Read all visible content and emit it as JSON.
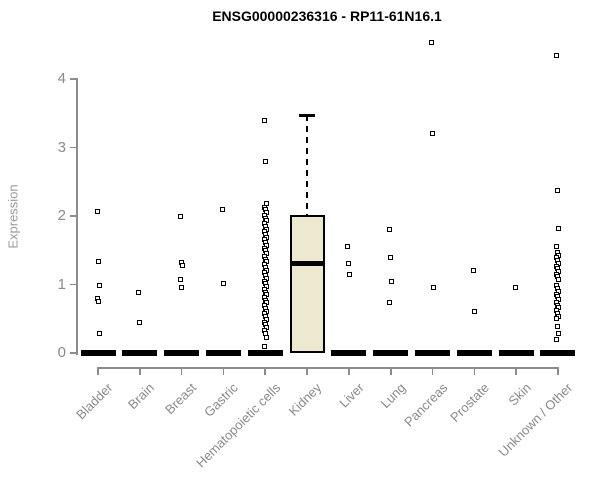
{
  "title": "ENSG00000236316 - RP11-61N16.1",
  "chart_data": {
    "type": "boxplot",
    "title": "ENSG00000236316 - RP11-61N16.1",
    "xlabel": "",
    "ylabel": "Expression",
    "ylim": [
      0,
      4
    ],
    "yticks": [
      0,
      1,
      2,
      3,
      4
    ],
    "grid": false,
    "legend": "none",
    "categories": [
      "Bladder",
      "Brain",
      "Breast",
      "Gastric",
      "Hematopoietic cells",
      "Kidney",
      "Liver",
      "Lung",
      "Pancreas",
      "Prostate",
      "Skin",
      "Unknown / Other"
    ],
    "series": [
      {
        "category": "Bladder",
        "median": 0,
        "zero_bar": true,
        "points": [
          2.06,
          1.34,
          0.99,
          0.8,
          0.75,
          0.28
        ]
      },
      {
        "category": "Brain",
        "median": 0,
        "zero_bar": true,
        "points": [
          0.88,
          0.44
        ]
      },
      {
        "category": "Breast",
        "median": 0,
        "zero_bar": true,
        "points": [
          2.0,
          1.32,
          1.28,
          1.07,
          0.95
        ]
      },
      {
        "category": "Gastric",
        "median": 0,
        "zero_bar": true,
        "points": [
          2.09,
          1.01
        ]
      },
      {
        "category": "Hematopoietic cells",
        "median": 0,
        "zero_bar": true,
        "points": [
          3.4,
          2.8,
          2.18,
          2.13,
          2.09,
          2.05,
          2.01,
          1.97,
          1.93,
          1.89,
          1.85,
          1.81,
          1.77,
          1.73,
          1.69,
          1.65,
          1.61,
          1.57,
          1.53,
          1.49,
          1.45,
          1.41,
          1.37,
          1.33,
          1.29,
          1.25,
          1.21,
          1.17,
          1.13,
          1.09,
          1.05,
          1.01,
          0.97,
          0.93,
          0.89,
          0.85,
          0.81,
          0.77,
          0.73,
          0.69,
          0.65,
          0.61,
          0.57,
          0.53,
          0.49,
          0.45,
          0.41,
          0.37,
          0.33,
          0.29,
          0.22,
          0.1
        ]
      },
      {
        "category": "Kidney",
        "zero_bar": false,
        "box": {
          "q1": 0.0,
          "median": 1.31,
          "q3": 2.01,
          "whisker_high": 3.47
        },
        "points": []
      },
      {
        "category": "Liver",
        "median": 0,
        "zero_bar": true,
        "points": [
          1.56,
          1.3,
          1.14
        ]
      },
      {
        "category": "Lung",
        "median": 0,
        "zero_bar": true,
        "points": [
          1.81,
          1.39,
          1.04,
          0.74
        ]
      },
      {
        "category": "Pancreas",
        "median": 0,
        "zero_bar": true,
        "points": [
          4.54,
          3.21,
          0.96
        ]
      },
      {
        "category": "Prostate",
        "median": 0,
        "zero_bar": true,
        "points": [
          1.2,
          0.61
        ]
      },
      {
        "category": "Skin",
        "median": 0,
        "zero_bar": true,
        "points": [
          0.95
        ]
      },
      {
        "category": "Unknown / Other",
        "median": 0,
        "zero_bar": true,
        "points": [
          4.34,
          2.37,
          1.82,
          1.55,
          1.47,
          1.43,
          1.39,
          1.35,
          1.31,
          1.27,
          1.23,
          1.19,
          1.15,
          1.11,
          1.07,
          0.98,
          0.94,
          0.9,
          0.86,
          0.82,
          0.78,
          0.74,
          0.7,
          0.66,
          0.62,
          0.58,
          0.54,
          0.5,
          0.38,
          0.29,
          0.19
        ]
      }
    ],
    "colors": {
      "box_fill": "#ede9d0",
      "box_border": "#000000",
      "point": "#000000",
      "median": "#000000",
      "axis": "#8c8c8c",
      "axis_text": "#8a8a8a",
      "title": "#000000",
      "background": "#ffffff"
    }
  }
}
